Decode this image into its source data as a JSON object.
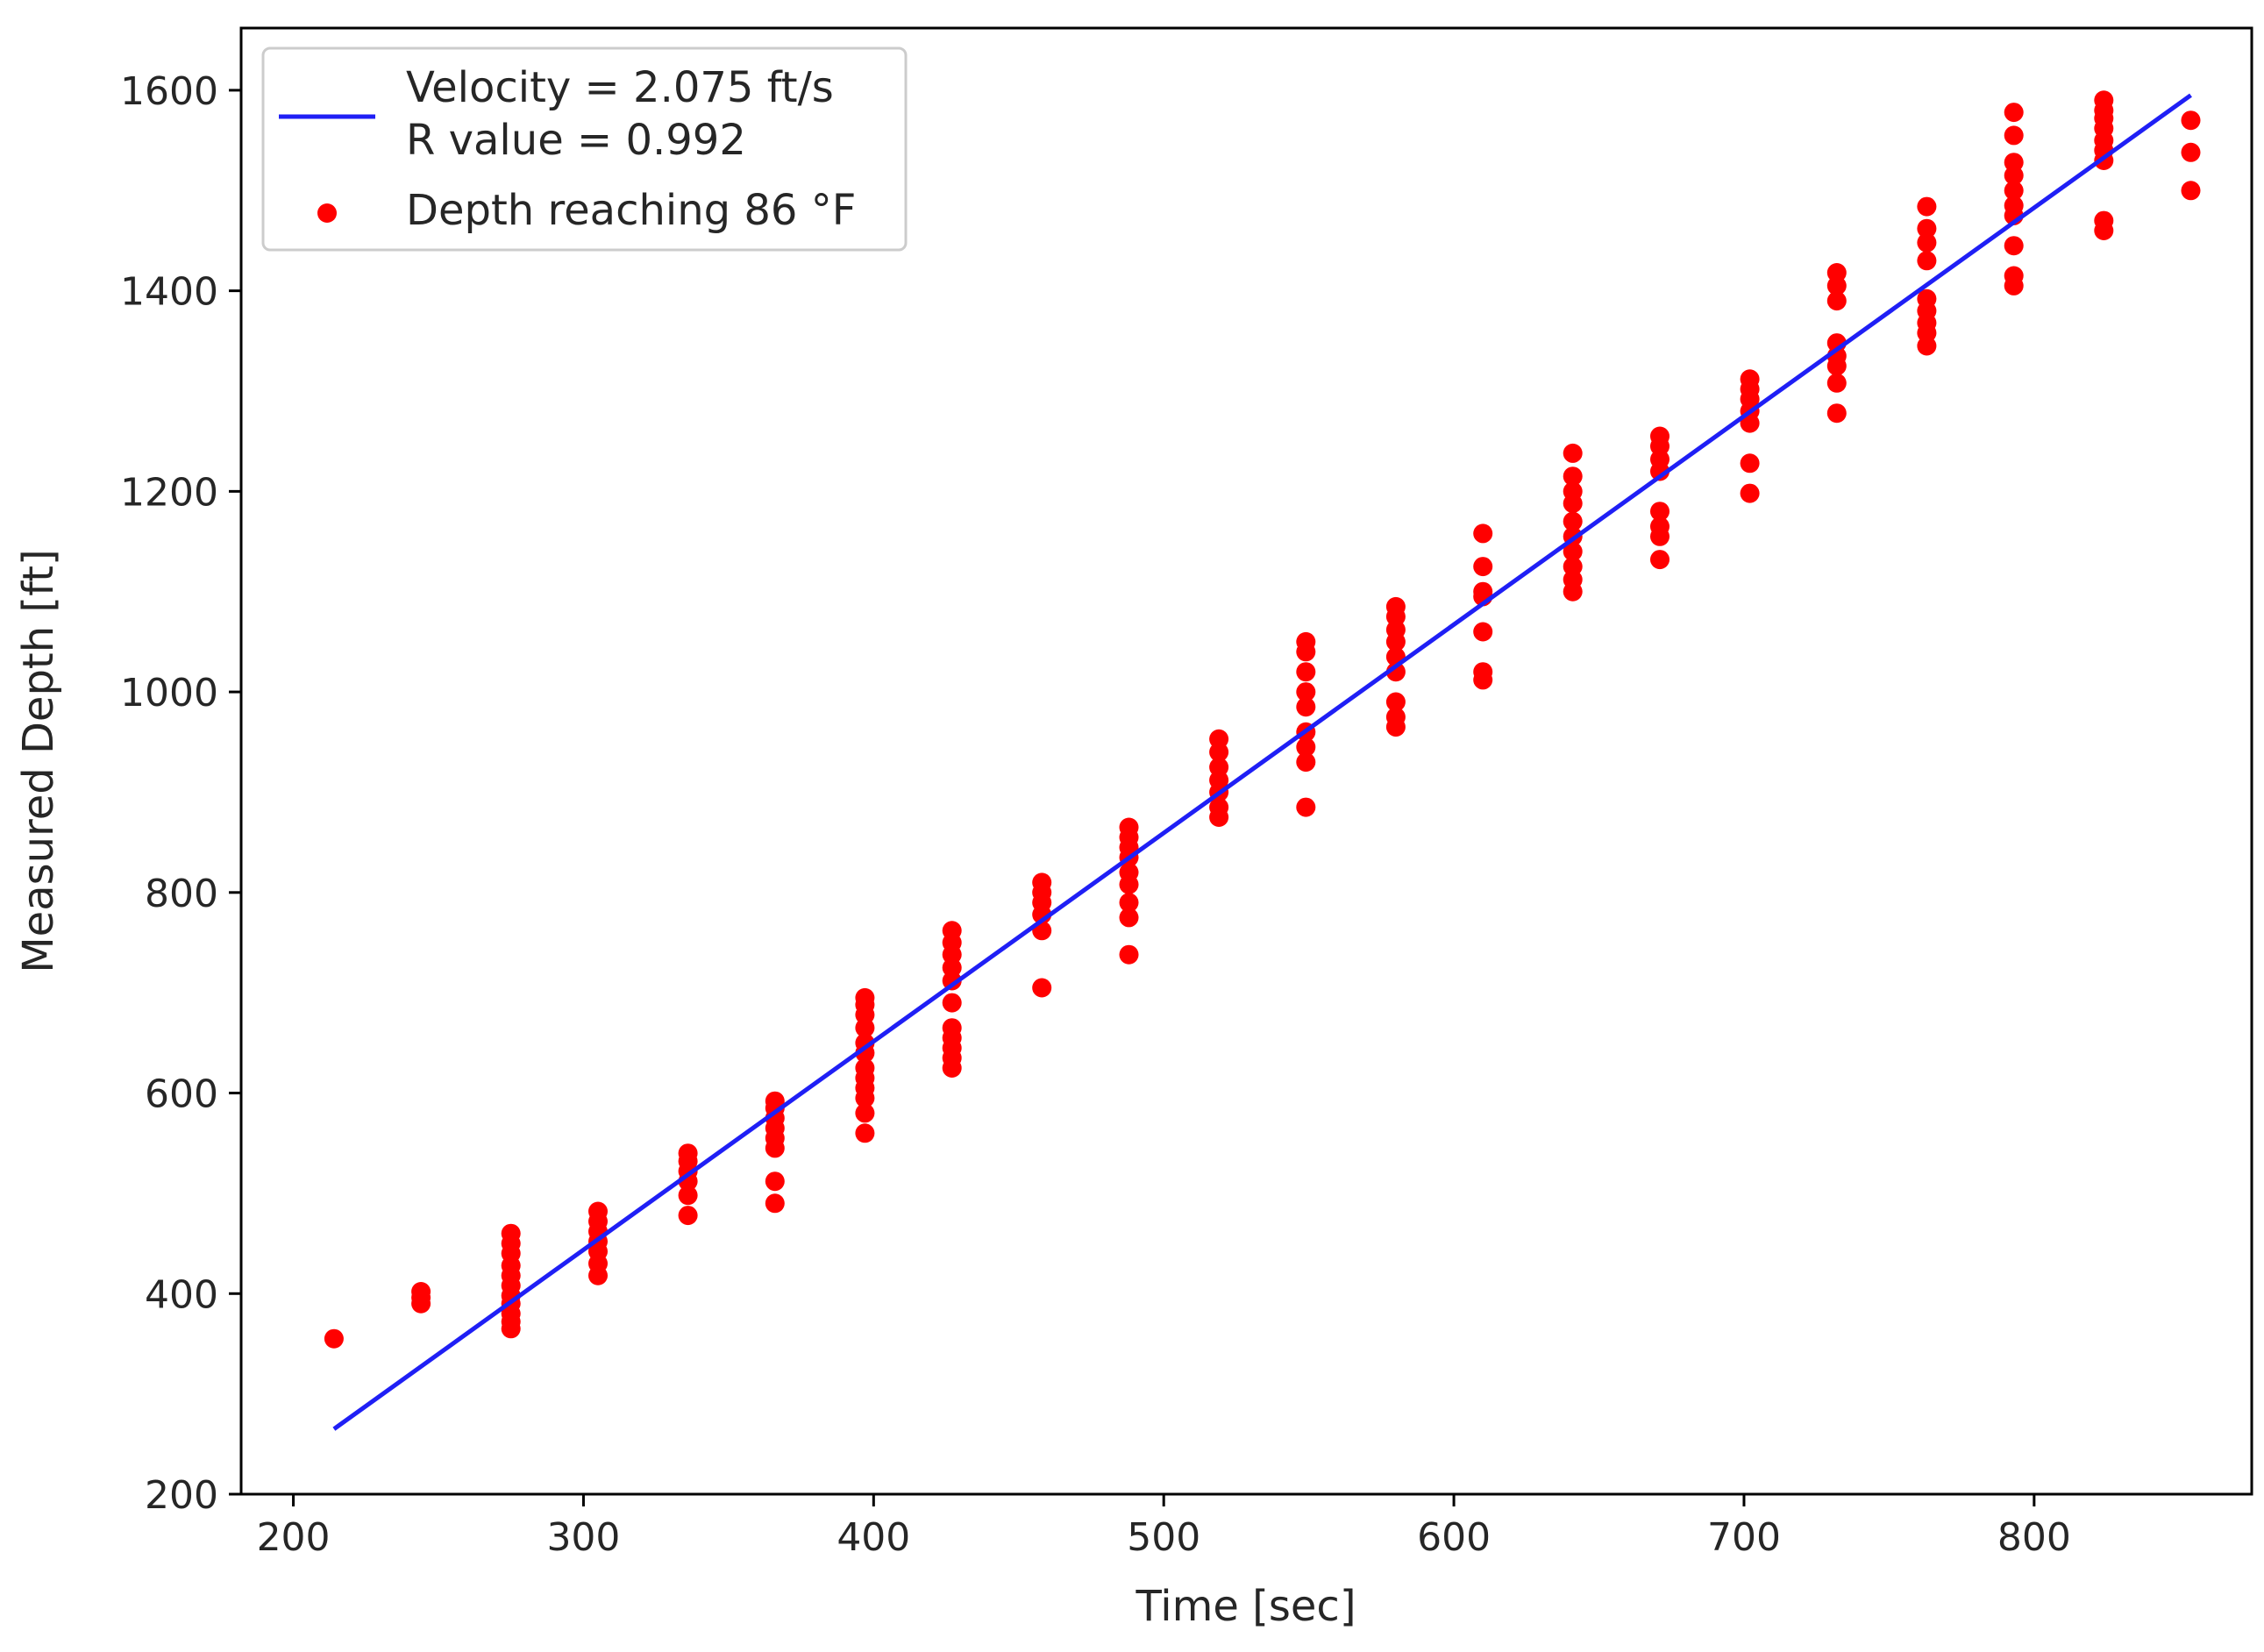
{
  "chart_data": {
    "type": "scatter",
    "title": "",
    "xlabel": "Time [sec]",
    "ylabel": "Measured Depth [ft]",
    "xlim": [
      182,
      875
    ],
    "ylim": [
      200,
      1662
    ],
    "xticks": [
      200,
      300,
      400,
      500,
      600,
      700,
      800
    ],
    "yticks": [
      200,
      400,
      600,
      800,
      1000,
      1200,
      1400,
      1600
    ],
    "grid": false,
    "legend_position": "top-left",
    "colors": {
      "fit": "#1f1ff5",
      "points": "#ff0000",
      "axis": "#000000",
      "legend_border": "#cccccc"
    },
    "series": [
      {
        "name": "fit",
        "type": "line",
        "legend_lines": [
          "Velocity = 2.075 ft/s",
          "R value = 0.992"
        ],
        "x": [
          214,
          854
        ],
        "y": [
          265,
          1595
        ]
      },
      {
        "name": "points",
        "type": "scatter",
        "legend_lines": [
          "Depth reaching 86 °F"
        ],
        "points": [
          [
            214,
            355
          ],
          [
            244,
            390
          ],
          [
            244,
            396
          ],
          [
            244,
            402
          ],
          [
            275,
            365
          ],
          [
            275,
            372
          ],
          [
            275,
            380
          ],
          [
            275,
            390
          ],
          [
            275,
            398
          ],
          [
            275,
            408
          ],
          [
            275,
            418
          ],
          [
            275,
            428
          ],
          [
            275,
            440
          ],
          [
            275,
            450
          ],
          [
            275,
            460
          ],
          [
            305,
            418
          ],
          [
            305,
            430
          ],
          [
            305,
            442
          ],
          [
            305,
            452
          ],
          [
            305,
            462
          ],
          [
            305,
            472
          ],
          [
            305,
            482
          ],
          [
            336,
            478
          ],
          [
            336,
            498
          ],
          [
            336,
            512
          ],
          [
            336,
            522
          ],
          [
            336,
            532
          ],
          [
            336,
            540
          ],
          [
            366,
            490
          ],
          [
            366,
            512
          ],
          [
            366,
            545
          ],
          [
            366,
            555
          ],
          [
            366,
            565
          ],
          [
            366,
            575
          ],
          [
            366,
            585
          ],
          [
            366,
            592
          ],
          [
            397,
            560
          ],
          [
            397,
            580
          ],
          [
            397,
            595
          ],
          [
            397,
            605
          ],
          [
            397,
            615
          ],
          [
            397,
            625
          ],
          [
            397,
            640
          ],
          [
            397,
            650
          ],
          [
            397,
            665
          ],
          [
            397,
            678
          ],
          [
            397,
            688
          ],
          [
            397,
            695
          ],
          [
            427,
            625
          ],
          [
            427,
            635
          ],
          [
            427,
            645
          ],
          [
            427,
            655
          ],
          [
            427,
            665
          ],
          [
            427,
            690
          ],
          [
            427,
            712
          ],
          [
            427,
            725
          ],
          [
            427,
            738
          ],
          [
            427,
            750
          ],
          [
            427,
            762
          ],
          [
            458,
            705
          ],
          [
            458,
            762
          ],
          [
            458,
            778
          ],
          [
            458,
            790
          ],
          [
            458,
            800
          ],
          [
            458,
            810
          ],
          [
            488,
            738
          ],
          [
            488,
            775
          ],
          [
            488,
            790
          ],
          [
            488,
            808
          ],
          [
            488,
            820
          ],
          [
            488,
            835
          ],
          [
            488,
            845
          ],
          [
            488,
            855
          ],
          [
            488,
            865
          ],
          [
            519,
            875
          ],
          [
            519,
            885
          ],
          [
            519,
            900
          ],
          [
            519,
            912
          ],
          [
            519,
            925
          ],
          [
            519,
            940
          ],
          [
            519,
            953
          ],
          [
            549,
            885
          ],
          [
            549,
            930
          ],
          [
            549,
            945
          ],
          [
            549,
            960
          ],
          [
            549,
            985
          ],
          [
            549,
            1000
          ],
          [
            549,
            1020
          ],
          [
            549,
            1040
          ],
          [
            549,
            1050
          ],
          [
            580,
            965
          ],
          [
            580,
            975
          ],
          [
            580,
            990
          ],
          [
            580,
            1020
          ],
          [
            580,
            1035
          ],
          [
            580,
            1050
          ],
          [
            580,
            1062
          ],
          [
            580,
            1075
          ],
          [
            580,
            1085
          ],
          [
            610,
            1012
          ],
          [
            610,
            1020
          ],
          [
            610,
            1060
          ],
          [
            610,
            1095
          ],
          [
            610,
            1100
          ],
          [
            610,
            1125
          ],
          [
            610,
            1158
          ],
          [
            641,
            1100
          ],
          [
            641,
            1112
          ],
          [
            641,
            1125
          ],
          [
            641,
            1140
          ],
          [
            641,
            1155
          ],
          [
            641,
            1170
          ],
          [
            641,
            1188
          ],
          [
            641,
            1200
          ],
          [
            641,
            1215
          ],
          [
            641,
            1238
          ],
          [
            671,
            1132
          ],
          [
            671,
            1155
          ],
          [
            671,
            1165
          ],
          [
            671,
            1180
          ],
          [
            671,
            1220
          ],
          [
            671,
            1232
          ],
          [
            671,
            1245
          ],
          [
            671,
            1255
          ],
          [
            702,
            1198
          ],
          [
            702,
            1228
          ],
          [
            702,
            1268
          ],
          [
            702,
            1280
          ],
          [
            702,
            1292
          ],
          [
            702,
            1302
          ],
          [
            702,
            1312
          ],
          [
            732,
            1278
          ],
          [
            732,
            1308
          ],
          [
            732,
            1325
          ],
          [
            732,
            1335
          ],
          [
            732,
            1348
          ],
          [
            732,
            1390
          ],
          [
            732,
            1405
          ],
          [
            732,
            1418
          ],
          [
            763,
            1345
          ],
          [
            763,
            1358
          ],
          [
            763,
            1368
          ],
          [
            763,
            1380
          ],
          [
            763,
            1392
          ],
          [
            763,
            1430
          ],
          [
            763,
            1448
          ],
          [
            763,
            1462
          ],
          [
            763,
            1484
          ],
          [
            793,
            1405
          ],
          [
            793,
            1415
          ],
          [
            793,
            1445
          ],
          [
            793,
            1475
          ],
          [
            793,
            1485
          ],
          [
            793,
            1500
          ],
          [
            793,
            1515
          ],
          [
            793,
            1528
          ],
          [
            793,
            1555
          ],
          [
            793,
            1578
          ],
          [
            824,
            1460
          ],
          [
            824,
            1470
          ],
          [
            824,
            1530
          ],
          [
            824,
            1540
          ],
          [
            824,
            1550
          ],
          [
            824,
            1562
          ],
          [
            824,
            1572
          ],
          [
            824,
            1580
          ],
          [
            824,
            1590
          ],
          [
            854,
            1500
          ],
          [
            854,
            1538
          ],
          [
            854,
            1570
          ]
        ]
      }
    ]
  }
}
